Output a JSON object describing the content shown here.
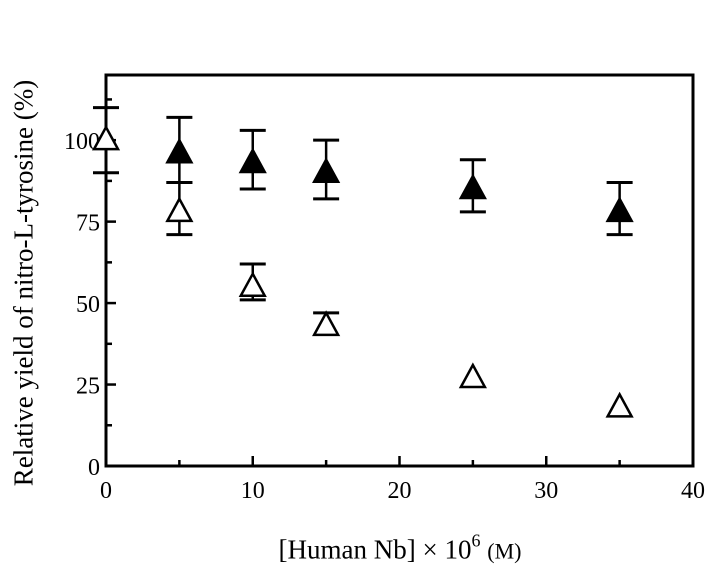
{
  "chart_data": {
    "type": "scatter",
    "title": "",
    "xlabel": "[Human Nb] × 10^6 (M)",
    "xlabel_parts": {
      "main": "[Human Nb] × 10",
      "exp": "6",
      "unit": "(M)"
    },
    "ylabel": "Relative yield of nitro-L-tyrosine (%)",
    "xlim": [
      0,
      40
    ],
    "ylim": [
      0,
      120
    ],
    "x_ticks": [
      0,
      10,
      20,
      30,
      40
    ],
    "x_minor_ticks": [
      5,
      15,
      25,
      35
    ],
    "y_ticks": [
      0,
      25,
      50,
      75,
      100
    ],
    "y_minor_ticks": [
      12.5,
      37.5,
      62.5,
      87.5,
      112.5
    ],
    "grid": false,
    "legend": null,
    "series": [
      {
        "name": "filled-triangles",
        "marker": "filled-triangle",
        "x": [
          5,
          10,
          15,
          25,
          35
        ],
        "y": [
          96,
          93,
          90,
          85,
          78
        ],
        "err_upper": [
          107,
          103,
          100,
          94,
          87
        ],
        "err_lower": [
          87,
          85,
          82,
          78,
          71
        ]
      },
      {
        "name": "open-triangles",
        "marker": "open-triangle",
        "x": [
          0,
          5,
          10,
          15,
          25,
          35
        ],
        "y": [
          100,
          78,
          55,
          43,
          27,
          18
        ],
        "err_upper": [
          110,
          87,
          62,
          47,
          null,
          null
        ],
        "err_lower": [
          90,
          71,
          51,
          null,
          null,
          null
        ]
      }
    ]
  }
}
